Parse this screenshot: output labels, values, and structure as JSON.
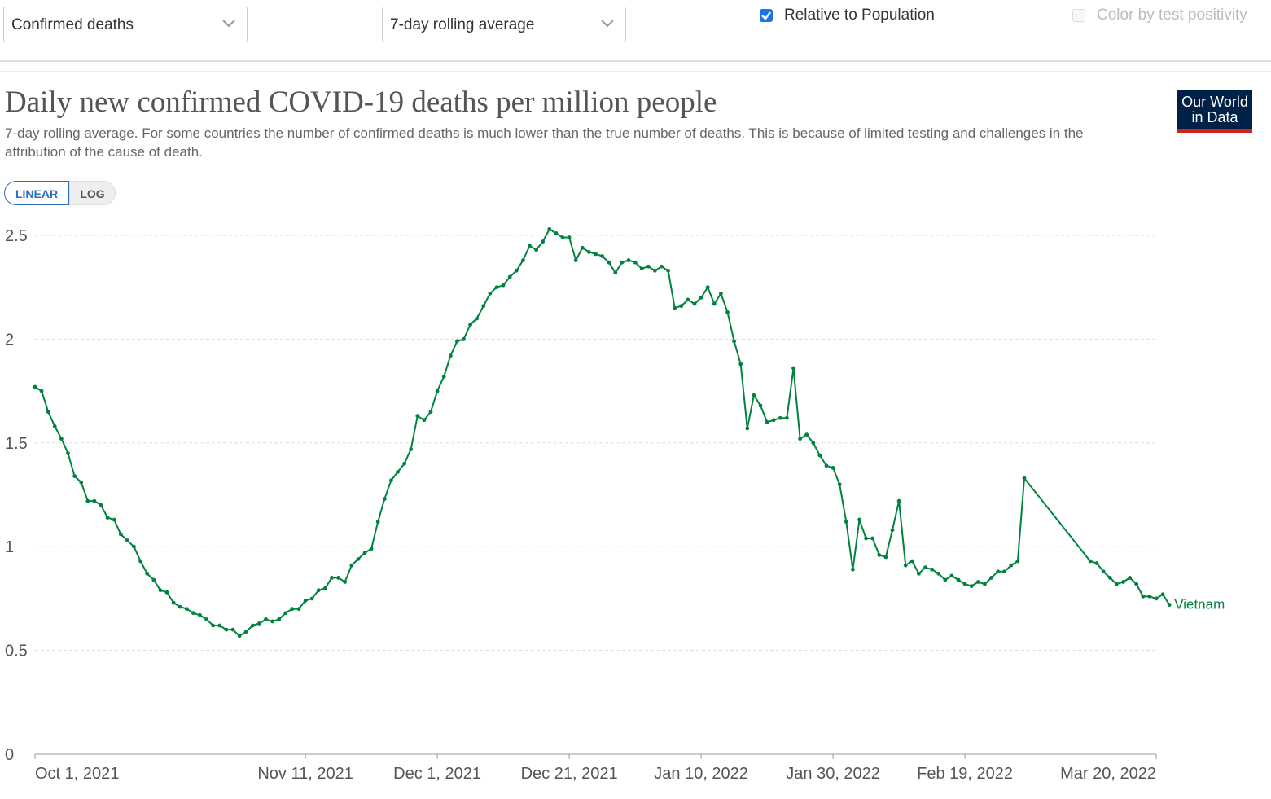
{
  "controls": {
    "metric_select": "Confirmed deaths",
    "interval_select": "7-day rolling average",
    "relative_label": "Relative to Population",
    "relative_checked": true,
    "positivity_label": "Color by test positivity",
    "positivity_checked": false
  },
  "header": {
    "title": "Daily new confirmed COVID-19 deaths per million people",
    "subtitle": "7-day rolling average. For some countries the number of confirmed deaths is much lower than the true number of deaths. This is because of limited testing and challenges in the attribution of the cause of death.",
    "logo_line1": "Our World",
    "logo_line2": "in Data"
  },
  "scale_toggle": {
    "linear": "LINEAR",
    "log": "LOG",
    "active": "LINEAR"
  },
  "colors": {
    "series": "#00833f",
    "accent": "#1a73e8",
    "logo_bg": "#002147",
    "logo_bar": "#ce261e"
  },
  "chart_data": {
    "type": "line",
    "y_ticks": [
      0,
      0.5,
      1,
      1.5,
      2,
      2.5
    ],
    "y_tick_labels": [
      "0",
      "0.5",
      "1",
      "1.5",
      "2",
      "2.5"
    ],
    "ylim": [
      0,
      2.5
    ],
    "x_tick_labels": [
      "Oct 1, 2021",
      "Nov 11, 2021",
      "Dec 1, 2021",
      "Dec 21, 2021",
      "Jan 10, 2022",
      "Jan 30, 2022",
      "Feb 19, 2022",
      "Mar 20, 2022"
    ],
    "x_ticks": [
      "2021-10-01",
      "2021-11-11",
      "2021-12-01",
      "2021-12-21",
      "2022-01-10",
      "2022-01-30",
      "2022-02-19",
      "2022-03-20"
    ],
    "x_range": [
      "2021-10-01",
      "2022-03-20"
    ],
    "grid": true,
    "series": [
      {
        "name": "Vietnam",
        "points": [
          [
            "2021-10-01",
            1.77
          ],
          [
            "2021-10-02",
            1.75
          ],
          [
            "2021-10-03",
            1.65
          ],
          [
            "2021-10-04",
            1.58
          ],
          [
            "2021-10-05",
            1.52
          ],
          [
            "2021-10-06",
            1.45
          ],
          [
            "2021-10-07",
            1.34
          ],
          [
            "2021-10-08",
            1.31
          ],
          [
            "2021-10-09",
            1.22
          ],
          [
            "2021-10-10",
            1.22
          ],
          [
            "2021-10-11",
            1.2
          ],
          [
            "2021-10-12",
            1.14
          ],
          [
            "2021-10-13",
            1.13
          ],
          [
            "2021-10-14",
            1.06
          ],
          [
            "2021-10-15",
            1.03
          ],
          [
            "2021-10-16",
            1.0
          ],
          [
            "2021-10-17",
            0.93
          ],
          [
            "2021-10-18",
            0.87
          ],
          [
            "2021-10-19",
            0.84
          ],
          [
            "2021-10-20",
            0.79
          ],
          [
            "2021-10-21",
            0.78
          ],
          [
            "2021-10-22",
            0.73
          ],
          [
            "2021-10-23",
            0.71
          ],
          [
            "2021-10-24",
            0.7
          ],
          [
            "2021-10-25",
            0.68
          ],
          [
            "2021-10-26",
            0.67
          ],
          [
            "2021-10-27",
            0.65
          ],
          [
            "2021-10-28",
            0.62
          ],
          [
            "2021-10-29",
            0.62
          ],
          [
            "2021-10-30",
            0.6
          ],
          [
            "2021-10-31",
            0.6
          ],
          [
            "2021-11-01",
            0.57
          ],
          [
            "2021-11-02",
            0.59
          ],
          [
            "2021-11-03",
            0.62
          ],
          [
            "2021-11-04",
            0.63
          ],
          [
            "2021-11-05",
            0.65
          ],
          [
            "2021-11-06",
            0.64
          ],
          [
            "2021-11-07",
            0.65
          ],
          [
            "2021-11-08",
            0.68
          ],
          [
            "2021-11-09",
            0.7
          ],
          [
            "2021-11-10",
            0.7
          ],
          [
            "2021-11-11",
            0.74
          ],
          [
            "2021-11-12",
            0.75
          ],
          [
            "2021-11-13",
            0.79
          ],
          [
            "2021-11-14",
            0.8
          ],
          [
            "2021-11-15",
            0.85
          ],
          [
            "2021-11-16",
            0.85
          ],
          [
            "2021-11-17",
            0.83
          ],
          [
            "2021-11-18",
            0.91
          ],
          [
            "2021-11-19",
            0.94
          ],
          [
            "2021-11-20",
            0.97
          ],
          [
            "2021-11-21",
            0.99
          ],
          [
            "2021-11-22",
            1.12
          ],
          [
            "2021-11-23",
            1.23
          ],
          [
            "2021-11-24",
            1.32
          ],
          [
            "2021-11-25",
            1.36
          ],
          [
            "2021-11-26",
            1.4
          ],
          [
            "2021-11-27",
            1.47
          ],
          [
            "2021-11-28",
            1.63
          ],
          [
            "2021-11-29",
            1.61
          ],
          [
            "2021-11-30",
            1.65
          ],
          [
            "2021-12-01",
            1.75
          ],
          [
            "2021-12-02",
            1.82
          ],
          [
            "2021-12-03",
            1.92
          ],
          [
            "2021-12-04",
            1.99
          ],
          [
            "2021-12-05",
            2.0
          ],
          [
            "2021-12-06",
            2.07
          ],
          [
            "2021-12-07",
            2.1
          ],
          [
            "2021-12-08",
            2.16
          ],
          [
            "2021-12-09",
            2.22
          ],
          [
            "2021-12-10",
            2.25
          ],
          [
            "2021-12-11",
            2.26
          ],
          [
            "2021-12-12",
            2.3
          ],
          [
            "2021-12-13",
            2.33
          ],
          [
            "2021-12-14",
            2.38
          ],
          [
            "2021-12-15",
            2.45
          ],
          [
            "2021-12-16",
            2.43
          ],
          [
            "2021-12-17",
            2.47
          ],
          [
            "2021-12-18",
            2.53
          ],
          [
            "2021-12-19",
            2.51
          ],
          [
            "2021-12-20",
            2.49
          ],
          [
            "2021-12-21",
            2.49
          ],
          [
            "2021-12-22",
            2.38
          ],
          [
            "2021-12-23",
            2.44
          ],
          [
            "2021-12-24",
            2.42
          ],
          [
            "2021-12-25",
            2.41
          ],
          [
            "2021-12-26",
            2.4
          ],
          [
            "2021-12-27",
            2.37
          ],
          [
            "2021-12-28",
            2.32
          ],
          [
            "2021-12-29",
            2.37
          ],
          [
            "2021-12-30",
            2.38
          ],
          [
            "2021-12-31",
            2.37
          ],
          [
            "2022-01-01",
            2.34
          ],
          [
            "2022-01-02",
            2.35
          ],
          [
            "2022-01-03",
            2.33
          ],
          [
            "2022-01-04",
            2.35
          ],
          [
            "2022-01-05",
            2.33
          ],
          [
            "2022-01-06",
            2.15
          ],
          [
            "2022-01-07",
            2.16
          ],
          [
            "2022-01-08",
            2.19
          ],
          [
            "2022-01-09",
            2.17
          ],
          [
            "2022-01-10",
            2.2
          ],
          [
            "2022-01-11",
            2.25
          ],
          [
            "2022-01-12",
            2.17
          ],
          [
            "2022-01-13",
            2.22
          ],
          [
            "2022-01-14",
            2.13
          ],
          [
            "2022-01-15",
            1.99
          ],
          [
            "2022-01-16",
            1.88
          ],
          [
            "2022-01-17",
            1.57
          ],
          [
            "2022-01-18",
            1.73
          ],
          [
            "2022-01-19",
            1.68
          ],
          [
            "2022-01-20",
            1.6
          ],
          [
            "2022-01-21",
            1.61
          ],
          [
            "2022-01-22",
            1.62
          ],
          [
            "2022-01-23",
            1.62
          ],
          [
            "2022-01-24",
            1.86
          ],
          [
            "2022-01-25",
            1.52
          ],
          [
            "2022-01-26",
            1.54
          ],
          [
            "2022-01-27",
            1.5
          ],
          [
            "2022-01-28",
            1.44
          ],
          [
            "2022-01-29",
            1.39
          ],
          [
            "2022-01-30",
            1.38
          ],
          [
            "2022-01-31",
            1.3
          ],
          [
            "2022-02-01",
            1.12
          ],
          [
            "2022-02-02",
            0.89
          ],
          [
            "2022-02-03",
            1.13
          ],
          [
            "2022-02-04",
            1.04
          ],
          [
            "2022-02-05",
            1.04
          ],
          [
            "2022-02-06",
            0.96
          ],
          [
            "2022-02-07",
            0.95
          ],
          [
            "2022-02-08",
            1.08
          ],
          [
            "2022-02-09",
            1.22
          ],
          [
            "2022-02-10",
            0.91
          ],
          [
            "2022-02-11",
            0.93
          ],
          [
            "2022-02-12",
            0.87
          ],
          [
            "2022-02-13",
            0.9
          ],
          [
            "2022-02-14",
            0.89
          ],
          [
            "2022-02-15",
            0.87
          ],
          [
            "2022-02-16",
            0.84
          ],
          [
            "2022-02-17",
            0.86
          ],
          [
            "2022-02-18",
            0.84
          ],
          [
            "2022-02-19",
            0.82
          ],
          [
            "2022-02-20",
            0.81
          ],
          [
            "2022-02-21",
            0.83
          ],
          [
            "2022-02-22",
            0.82
          ],
          [
            "2022-02-23",
            0.85
          ],
          [
            "2022-02-24",
            0.88
          ],
          [
            "2022-02-25",
            0.88
          ],
          [
            "2022-02-26",
            0.91
          ],
          [
            "2022-02-27",
            0.93
          ],
          [
            "2022-02-28",
            1.33
          ],
          [
            "2022-03-10",
            0.93
          ],
          [
            "2022-03-11",
            0.92
          ],
          [
            "2022-03-12",
            0.88
          ],
          [
            "2022-03-13",
            0.85
          ],
          [
            "2022-03-14",
            0.82
          ],
          [
            "2022-03-15",
            0.83
          ],
          [
            "2022-03-16",
            0.85
          ],
          [
            "2022-03-17",
            0.82
          ],
          [
            "2022-03-18",
            0.76
          ],
          [
            "2022-03-19",
            0.76
          ],
          [
            "2022-03-20",
            0.75
          ],
          [
            "2022-03-21",
            0.77
          ],
          [
            "2022-03-22",
            0.72
          ]
        ]
      }
    ]
  }
}
